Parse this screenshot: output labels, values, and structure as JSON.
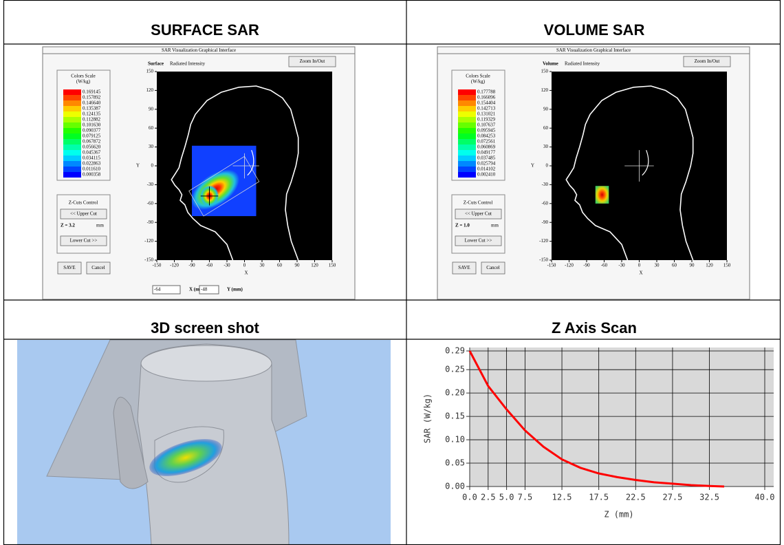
{
  "table": {
    "headers": [
      "SURFACE SAR",
      "VOLUME SAR",
      "3D screen shot",
      "Z Axis Scan"
    ]
  },
  "surface_panel": {
    "window_title": "SAR Visualization Graphical Interface",
    "mode": "Surface",
    "subtitle": "Radiated Intensity",
    "zoom_button": "Zoom In/Out",
    "scale_title": "Colors Scale",
    "scale_unit": "(W/kg)",
    "scale_values": [
      "0.169145",
      "0.157892",
      "0.146640",
      "0.135387",
      "0.124135",
      "0.112882",
      "0.101630",
      "0.090377",
      "0.079125",
      "0.067872",
      "0.056620",
      "0.045367",
      "0.034115",
      "0.022863",
      "0.011610",
      "0.000358"
    ],
    "zcut_title": "Z-Cuts Control",
    "upper_button": "<< Upper Cut",
    "z_label": "Z = 3.2",
    "z_unit": "mm",
    "lower_button": "Lower Cut >>",
    "save_button": "SAVE",
    "cancel_button": "Cancel",
    "x_axis_label": "X",
    "y_axis_label": "Y",
    "xlim": [
      -150,
      150
    ],
    "ylim": [
      -150,
      150
    ],
    "xticks": [
      -150,
      -120,
      -90,
      -60,
      -30,
      0,
      30,
      60,
      90,
      120,
      150
    ],
    "yticks": [
      150,
      120,
      90,
      60,
      30,
      0,
      -30,
      -60,
      -90,
      -120,
      -150
    ],
    "cursor": {
      "x": "-64",
      "x_label": "X (mm)",
      "y": "-48",
      "y_label": "Y (mm)"
    }
  },
  "volume_panel": {
    "window_title": "SAR Visualization Graphical Interface",
    "mode": "Volume",
    "subtitle": "Radiated Intensity",
    "zoom_button": "Zoom In/Out",
    "scale_title": "Colors Scale",
    "scale_unit": "(W/kg)",
    "scale_values": [
      "0.177788",
      "0.166096",
      "0.154404",
      "0.142713",
      "0.131021",
      "0.119329",
      "0.107637",
      "0.095945",
      "0.084253",
      "0.072561",
      "0.060869",
      "0.049177",
      "0.037485",
      "0.025794",
      "0.014102",
      "0.002410"
    ],
    "zcut_title": "Z-Cuts Control",
    "upper_button": "<< Upper Cut",
    "z_label": "Z = 1.0",
    "z_unit": "mm",
    "lower_button": "Lower Cut >>",
    "save_button": "SAVE",
    "cancel_button": "Cancel",
    "x_axis_label": "X",
    "y_axis_label": "Y",
    "xlim": [
      -150,
      150
    ],
    "ylim": [
      -150,
      150
    ],
    "xticks": [
      -150,
      -120,
      -90,
      -60,
      -30,
      0,
      30,
      60,
      90,
      120,
      150
    ],
    "yticks": [
      150,
      120,
      90,
      60,
      30,
      0,
      -30,
      -60,
      -90,
      -120,
      -150
    ]
  },
  "z_scan": {
    "type": "line",
    "x_label": "Z (mm)",
    "y_label": "SAR (W/kg)",
    "color": "#ff0000",
    "grid": true,
    "xlim": [
      0,
      40
    ],
    "ylim": [
      0,
      0.29
    ],
    "xticks": [
      {
        "value": 0,
        "label": "0.0"
      },
      2.5,
      {
        "value": 5,
        "label": "5.0"
      },
      7.5,
      12.5,
      17.5,
      22.5,
      27.5,
      32.5,
      {
        "value": 40,
        "label": "40.0"
      }
    ],
    "yticks": [
      {
        "value": 0,
        "label": "0.00"
      },
      0.05,
      {
        "value": 0.1,
        "label": "0.10"
      },
      0.15,
      {
        "value": 0.2,
        "label": "0.20"
      },
      0.25,
      0.29
    ],
    "x": [
      0,
      2.5,
      5,
      7.5,
      10,
      12.5,
      15,
      17.5,
      20,
      22.5,
      25,
      27.5,
      30,
      32.5,
      34.5
    ],
    "values": [
      0.29,
      0.215,
      0.165,
      0.12,
      0.085,
      0.058,
      0.04,
      0.028,
      0.02,
      0.014,
      0.009,
      0.006,
      0.003,
      0.001,
      0
    ]
  }
}
